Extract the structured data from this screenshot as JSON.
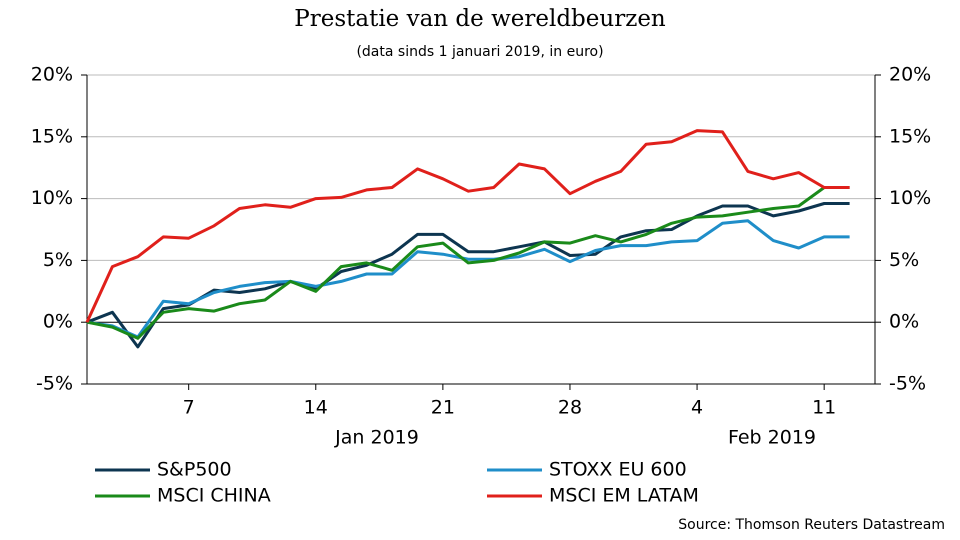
{
  "chart_data": {
    "type": "line",
    "title": "Prestatie van de wereldbeurzen",
    "subtitle": "(data sinds 1 januari 2019, in euro)",
    "source": "Source: Thomson Reuters Datastream",
    "x": [
      "2019-01-01",
      "2019-01-02",
      "2019-01-03",
      "2019-01-04",
      "2019-01-07",
      "2019-01-08",
      "2019-01-09",
      "2019-01-10",
      "2019-01-11",
      "2019-01-14",
      "2019-01-15",
      "2019-01-16",
      "2019-01-17",
      "2019-01-18",
      "2019-01-21",
      "2019-01-22",
      "2019-01-23",
      "2019-01-24",
      "2019-01-25",
      "2019-01-28",
      "2019-01-29",
      "2019-01-30",
      "2019-01-31",
      "2019-02-01",
      "2019-02-04",
      "2019-02-05",
      "2019-02-06",
      "2019-02-07",
      "2019-02-08",
      "2019-02-11",
      "2019-02-12"
    ],
    "xlim": [
      "2019-01-01",
      "2019-02-13"
    ],
    "xticks": [
      {
        "value": "2019-01-07",
        "label": "7"
      },
      {
        "value": "2019-01-14",
        "label": "14"
      },
      {
        "value": "2019-01-21",
        "label": "21"
      },
      {
        "value": "2019-01-28",
        "label": "28"
      },
      {
        "value": "2019-02-04",
        "label": "4"
      },
      {
        "value": "2019-02-11",
        "label": "11"
      }
    ],
    "x_group_labels": [
      "Jan 2019",
      "Feb 2019"
    ],
    "ylim": [
      -5,
      20
    ],
    "yticks": [
      {
        "value": -5,
        "label": "-5%"
      },
      {
        "value": 0,
        "label": "0%"
      },
      {
        "value": 5,
        "label": "5%"
      },
      {
        "value": 10,
        "label": "10%"
      },
      {
        "value": 15,
        "label": "15%"
      },
      {
        "value": 20,
        "label": "20%"
      }
    ],
    "y2lim": [
      -5,
      20
    ],
    "y2ticks": [
      {
        "value": -5,
        "label": "-5%"
      },
      {
        "value": 0,
        "label": "0%"
      },
      {
        "value": 5,
        "label": "5%"
      },
      {
        "value": 10,
        "label": "10%"
      },
      {
        "value": 15,
        "label": "15%"
      },
      {
        "value": 20,
        "label": "20%"
      }
    ],
    "grid": true,
    "series": [
      {
        "name": "S&P500",
        "color": "#0d3550",
        "values": [
          0,
          0.8,
          -2.0,
          1.1,
          1.4,
          2.6,
          2.4,
          2.7,
          3.3,
          2.7,
          4.1,
          4.6,
          5.5,
          7.1,
          7.1,
          5.7,
          5.7,
          6.1,
          6.5,
          5.4,
          5.5,
          6.9,
          7.4,
          7.5,
          8.6,
          9.4,
          9.4,
          8.6,
          9.0,
          9.6,
          9.6
        ]
      },
      {
        "name": "STOXX EU 600",
        "color": "#1f8ec9",
        "values": [
          0,
          -0.3,
          -1.2,
          1.7,
          1.5,
          2.4,
          2.9,
          3.2,
          3.3,
          2.9,
          3.3,
          3.9,
          3.9,
          5.7,
          5.5,
          5.1,
          5.1,
          5.3,
          5.9,
          4.9,
          5.8,
          6.2,
          6.2,
          6.5,
          6.6,
          8.0,
          8.2,
          6.6,
          6.0,
          6.9,
          6.9
        ]
      },
      {
        "name": "MSCI CHINA",
        "color": "#1a8a1a",
        "values": [
          0,
          -0.4,
          -1.3,
          0.8,
          1.1,
          0.9,
          1.5,
          1.8,
          3.3,
          2.5,
          4.5,
          4.8,
          4.2,
          6.1,
          6.4,
          4.8,
          5.0,
          5.6,
          6.5,
          6.4,
          7.0,
          6.5,
          7.1,
          8.0,
          8.5,
          8.6,
          8.9,
          9.2,
          9.4,
          10.9,
          10.9
        ]
      },
      {
        "name": "MSCI EM LATAM",
        "color": "#e0201b",
        "values": [
          0,
          4.5,
          5.3,
          6.9,
          6.8,
          7.8,
          9.2,
          9.5,
          9.3,
          10.0,
          10.1,
          10.7,
          10.9,
          12.4,
          11.6,
          10.6,
          10.9,
          12.8,
          12.4,
          10.4,
          11.4,
          12.2,
          14.4,
          14.6,
          15.5,
          15.4,
          12.2,
          11.6,
          12.1,
          10.9,
          10.9
        ]
      }
    ]
  }
}
